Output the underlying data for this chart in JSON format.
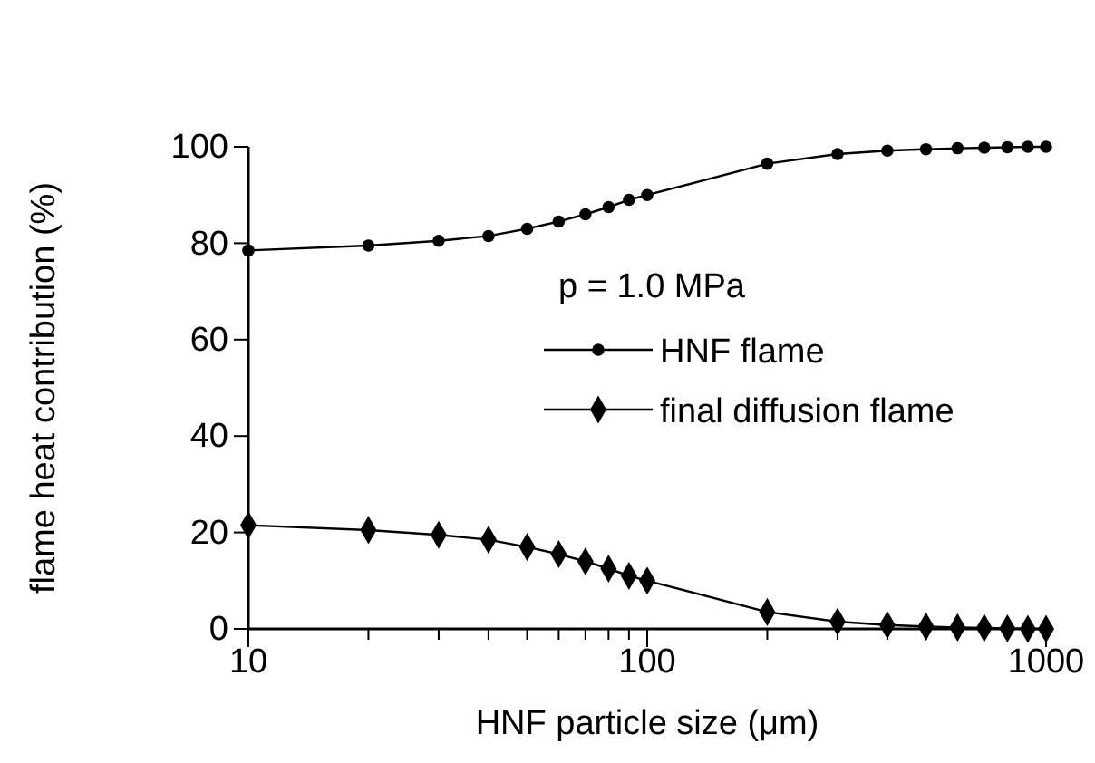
{
  "chart_data": {
    "type": "line",
    "xlabel": "HNF particle size (μm)",
    "ylabel": "flame heat contribution (%)",
    "legend_title": "p = 1.0 MPa",
    "legend": "right",
    "log": "x",
    "x": [
      10,
      20,
      30,
      40,
      50,
      60,
      70,
      80,
      90,
      100,
      200,
      300,
      400,
      500,
      600,
      700,
      800,
      900,
      1000
    ],
    "xlim": [
      10,
      1000
    ],
    "xticks": [
      10,
      {
        "value": 20,
        "label": null
      },
      {
        "value": 30,
        "label": null
      },
      {
        "value": 40,
        "label": null
      },
      {
        "value": 50,
        "label": null
      },
      {
        "value": 60,
        "label": null
      },
      {
        "value": 70,
        "label": null
      },
      {
        "value": 80,
        "label": null
      },
      {
        "value": 90,
        "label": null
      },
      100,
      {
        "value": 200,
        "label": null
      },
      {
        "value": 300,
        "label": null
      },
      {
        "value": 400,
        "label": null
      },
      {
        "value": 500,
        "label": null
      },
      {
        "value": 600,
        "label": null
      },
      {
        "value": 700,
        "label": null
      },
      {
        "value": 800,
        "label": null
      },
      {
        "value": 900,
        "label": null
      },
      1000
    ],
    "ylim": [
      0,
      100
    ],
    "yticks": [
      0,
      20,
      40,
      60,
      80,
      100
    ],
    "series": [
      {
        "name": "HNF flame",
        "color": "#000000",
        "marker": "circle",
        "values": [
          78.5,
          79.5,
          80.5,
          81.5,
          83,
          84.5,
          86,
          87.5,
          89,
          90,
          96.5,
          98.5,
          99.2,
          99.5,
          99.7,
          99.8,
          99.9,
          100,
          100
        ]
      },
      {
        "name": "final diffusion flame",
        "color": "#000000",
        "marker": "diamond",
        "values": [
          21.5,
          20.5,
          19.5,
          18.5,
          17,
          15.5,
          14,
          12.5,
          11,
          10,
          3.5,
          1.5,
          0.8,
          0.5,
          0.3,
          0.2,
          0.1,
          0,
          0
        ]
      }
    ]
  }
}
